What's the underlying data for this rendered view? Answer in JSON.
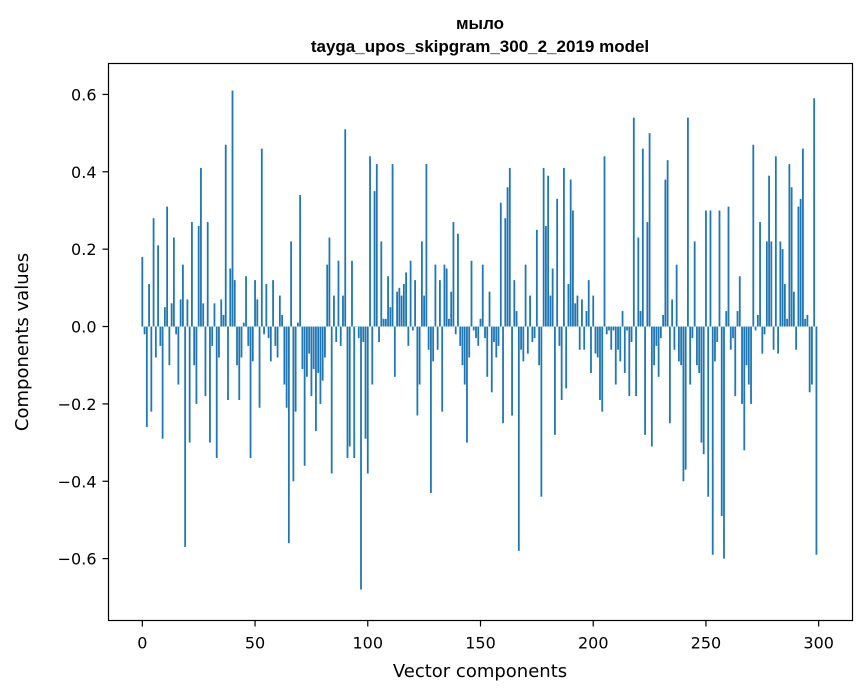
{
  "chart_data": {
    "type": "bar",
    "title": "мыло",
    "subtitle": "tayga_upos_skipgram_300_2_2019 model",
    "xlabel": "Vector components",
    "ylabel": "Components values",
    "xlim": [
      -15,
      315
    ],
    "ylim": [
      -0.76,
      0.68
    ],
    "xticks": [
      0,
      50,
      100,
      150,
      200,
      250,
      300
    ],
    "xtick_labels": [
      "0",
      "50",
      "100",
      "150",
      "200",
      "250",
      "300"
    ],
    "yticks": [
      -0.6,
      -0.4,
      -0.2,
      0.0,
      0.2,
      0.4,
      0.6
    ],
    "ytick_labels": [
      "−0.6",
      "−0.4",
      "−0.2",
      "0.0",
      "0.2",
      "0.4",
      "0.6"
    ],
    "grid": false,
    "bar_color": "#1f77b4",
    "values": [
      0.18,
      -0.02,
      -0.26,
      0.11,
      -0.22,
      0.28,
      -0.08,
      0.21,
      -0.05,
      -0.29,
      0.05,
      0.31,
      -0.1,
      0.06,
      0.23,
      -0.02,
      -0.15,
      0.07,
      0.16,
      -0.57,
      0.07,
      -0.3,
      0.27,
      -0.1,
      -0.2,
      0.26,
      0.41,
      0.06,
      -0.18,
      0.27,
      -0.3,
      -0.05,
      0.06,
      -0.34,
      -0.08,
      0.07,
      0.03,
      0.47,
      -0.19,
      0.15,
      0.61,
      0.12,
      -0.1,
      -0.19,
      -0.08,
      0.01,
      0.13,
      -0.05,
      -0.34,
      -0.09,
      0.12,
      0.07,
      -0.21,
      0.46,
      -0.02,
      0.11,
      -0.03,
      -0.09,
      0.12,
      -0.05,
      -0.08,
      0.08,
      0.03,
      -0.15,
      -0.21,
      -0.56,
      0.22,
      -0.4,
      -0.22,
      0.01,
      0.34,
      -0.11,
      -0.36,
      -0.13,
      -0.07,
      -0.18,
      -0.11,
      -0.27,
      -0.12,
      -0.2,
      -0.14,
      -0.08,
      0.16,
      0.23,
      -0.38,
      0.08,
      -0.04,
      0.17,
      -0.05,
      0.08,
      0.51,
      -0.34,
      -0.31,
      0.17,
      -0.34,
      0.0,
      -0.03,
      -0.68,
      -0.04,
      -0.29,
      -0.38,
      0.44,
      -0.15,
      0.35,
      0.42,
      -0.04,
      0.22,
      0.02,
      0.02,
      0.13,
      0.05,
      0.42,
      -0.13,
      0.09,
      0.1,
      0.08,
      0.11,
      0.14,
      -0.05,
      0.17,
      -0.01,
      0.12,
      -0.23,
      -0.15,
      0.22,
      0.08,
      0.42,
      -0.06,
      -0.43,
      -0.09,
      0.16,
      -0.06,
      0.12,
      -0.22,
      0.16,
      0.15,
      0.02,
      0.09,
      0.27,
      -0.02,
      0.24,
      -0.05,
      -0.1,
      -0.15,
      -0.3,
      -0.08,
      0.17,
      -0.01,
      -0.03,
      -0.05,
      0.02,
      0.16,
      -0.03,
      -0.13,
      0.09,
      -0.17,
      -0.04,
      -0.08,
      -0.05,
      0.32,
      -0.25,
      0.28,
      0.36,
      0.41,
      -0.23,
      0.12,
      0.04,
      -0.58,
      -0.06,
      -0.09,
      0.16,
      -0.07,
      0.08,
      -0.04,
      -0.03,
      0.25,
      -0.1,
      -0.44,
      0.41,
      0.26,
      0.39,
      0.08,
      0.15,
      -0.28,
      0.33,
      -0.05,
      -0.19,
      0.41,
      -0.16,
      0.11,
      0.38,
      0.3,
      0.06,
      0.08,
      -0.06,
      0.07,
      -0.06,
      0.04,
      0.12,
      -0.12,
      0.08,
      -0.07,
      -0.08,
      -0.19,
      -0.22,
      0.44,
      -0.02,
      -0.01,
      -0.06,
      -0.01,
      -0.15,
      -0.06,
      -0.09,
      0.04,
      -0.12,
      -0.01,
      -0.18,
      -0.04,
      0.54,
      -0.18,
      0.23,
      0.04,
      0.46,
      -0.28,
      0.27,
      0.5,
      -0.31,
      -0.1,
      -0.05,
      -0.13,
      -0.03,
      0.03,
      0.38,
      0.43,
      -0.25,
      0.07,
      -0.06,
      0.16,
      -0.09,
      -0.1,
      -0.4,
      -0.37,
      0.54,
      -0.15,
      -0.03,
      0.22,
      -0.1,
      -0.12,
      -0.3,
      -0.33,
      0.3,
      -0.44,
      0.3,
      -0.59,
      -0.09,
      -0.04,
      0.3,
      -0.49,
      -0.6,
      0.04,
      0.31,
      -0.06,
      -0.03,
      -0.18,
      0.04,
      0.13,
      -0.2,
      -0.32,
      -0.1,
      -0.15,
      -0.2,
      0.47,
      -0.01,
      0.03,
      0.27,
      -0.07,
      -0.02,
      0.22,
      0.39,
      0.22,
      -0.06,
      0.44,
      -0.07,
      0.22,
      0.2,
      0.11,
      0.02,
      0.42,
      0.36,
      0.09,
      -0.06,
      0.31,
      0.33,
      0.46,
      0.02,
      0.03,
      -0.17,
      -0.15,
      0.59,
      -0.59
    ]
  }
}
